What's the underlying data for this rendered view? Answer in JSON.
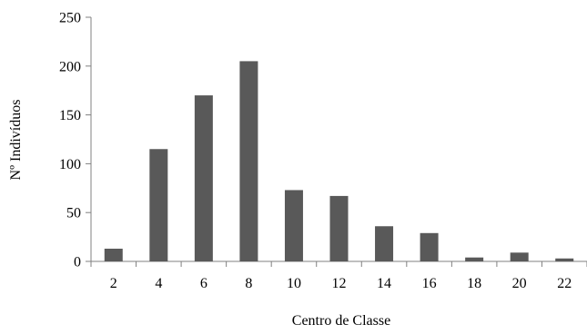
{
  "chart_data": {
    "type": "bar",
    "title": "",
    "xlabel": "Centro de Classe",
    "ylabel": "Nº Indivíduos",
    "categories": [
      "2",
      "4",
      "6",
      "8",
      "10",
      "12",
      "14",
      "16",
      "18",
      "20",
      "22"
    ],
    "values": [
      13,
      115,
      170,
      205,
      73,
      67,
      36,
      29,
      4,
      9,
      3
    ],
    "ylim": [
      0,
      250
    ],
    "yticks": [
      0,
      50,
      100,
      150,
      200,
      250
    ],
    "grid": false,
    "legend": "none",
    "bar_color": "#595959",
    "axis_color": "#808080"
  }
}
